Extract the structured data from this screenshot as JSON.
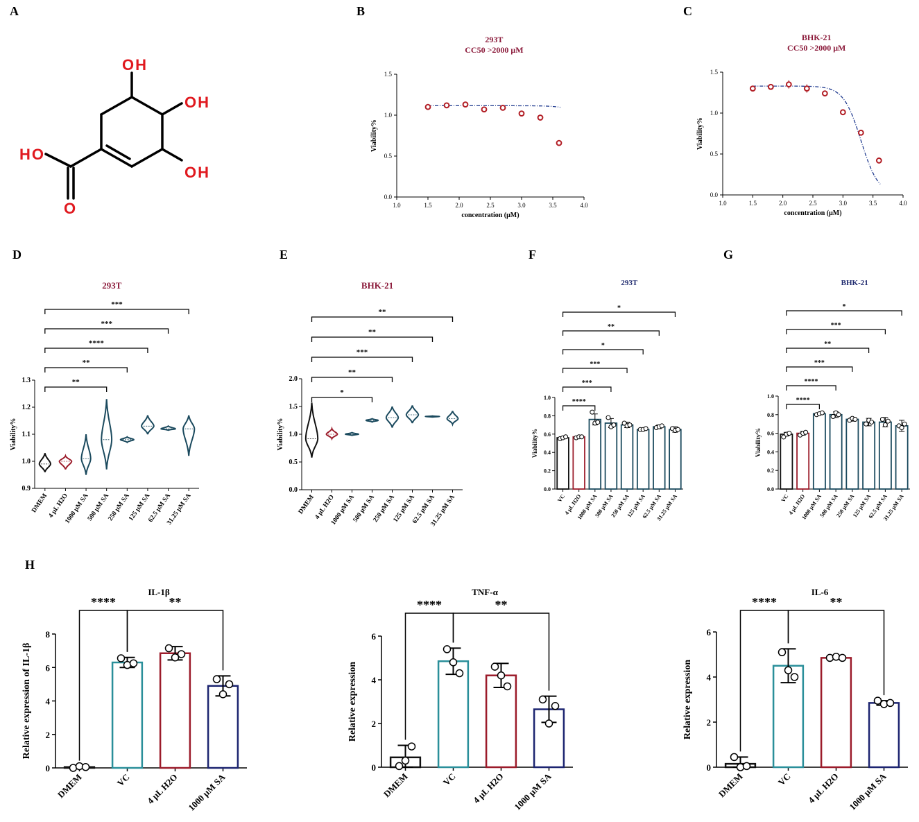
{
  "panels": {
    "A": {
      "letter": "A",
      "molecule": {
        "oh_top": "OH",
        "oh_right": "OH",
        "oh_bottom": "OH",
        "acid_ho": "HO",
        "acid_o": "O"
      }
    },
    "B": {
      "letter": "B",
      "chart_data": {
        "type": "scatter",
        "title": "293T",
        "subtitle": "CC50 >2000 μM",
        "xlabel": "concentration (μM)",
        "ylabel": "Viability%",
        "xlim": [
          1.0,
          4.0
        ],
        "ylim": [
          0.0,
          1.5
        ],
        "xticks": [
          1.0,
          1.5,
          2.0,
          2.5,
          3.0,
          3.5,
          4.0
        ],
        "yticks": [
          0.0,
          0.5,
          1.0,
          1.5
        ],
        "points": [
          {
            "x": 1.5,
            "y": 1.1,
            "err": 0.01
          },
          {
            "x": 1.8,
            "y": 1.12,
            "err": 0.01
          },
          {
            "x": 2.1,
            "y": 1.13,
            "err": 0.01
          },
          {
            "x": 2.4,
            "y": 1.07,
            "err": 0.01
          },
          {
            "x": 2.7,
            "y": 1.09,
            "err": 0.03
          },
          {
            "x": 3.0,
            "y": 1.02,
            "err": 0.02
          },
          {
            "x": 3.3,
            "y": 0.97,
            "err": 0.01
          },
          {
            "x": 3.6,
            "y": 0.66,
            "err": 0.03
          }
        ],
        "fit": {
          "top": 1.115,
          "bottom": 0.0,
          "logec50": 4.25,
          "hill": 2.8
        }
      }
    },
    "C": {
      "letter": "C",
      "chart_data": {
        "type": "scatter",
        "title": "BHK-21",
        "subtitle": "CC50 >2000 μM",
        "xlabel": "concentration (μM)",
        "ylabel": "Viability%",
        "xlim": [
          1.0,
          4.0
        ],
        "ylim": [
          0.0,
          1.5
        ],
        "xticks": [
          1.0,
          1.5,
          2.0,
          2.5,
          3.0,
          3.5,
          4.0
        ],
        "yticks": [
          0.0,
          0.5,
          1.0,
          1.5
        ],
        "points": [
          {
            "x": 1.5,
            "y": 1.3,
            "err": 0.03
          },
          {
            "x": 1.8,
            "y": 1.32,
            "err": 0.01
          },
          {
            "x": 2.1,
            "y": 1.35,
            "err": 0.05
          },
          {
            "x": 2.4,
            "y": 1.3,
            "err": 0.05
          },
          {
            "x": 2.7,
            "y": 1.24,
            "err": 0.01
          },
          {
            "x": 3.0,
            "y": 1.01,
            "err": 0.01
          },
          {
            "x": 3.3,
            "y": 0.76,
            "err": 0.01
          },
          {
            "x": 3.6,
            "y": 0.42,
            "err": 0.01
          }
        ],
        "fit": {
          "top": 1.33,
          "bottom": 0.0,
          "logec50": 3.3,
          "hill": 3.0
        }
      }
    },
    "D": {
      "letter": "D",
      "chart_data": {
        "type": "violin",
        "title": "293T",
        "ylabel": "Viability%",
        "ylim": [
          0.9,
          1.3
        ],
        "yticks": [
          0.9,
          1.0,
          1.1,
          1.2,
          1.3
        ],
        "categories": [
          "DMEM",
          "4 μL H2O",
          "1000 μM SA",
          "500 μM SA",
          "250 μM SA",
          "125 μM SA",
          "62.5 μM SA",
          "31.25 μM SA"
        ],
        "violins": [
          {
            "min": 0.96,
            "max": 1.03,
            "median": 0.99,
            "w": 0.55
          },
          {
            "min": 0.97,
            "max": 1.02,
            "median": 1.0,
            "w": 0.6
          },
          {
            "min": 0.95,
            "max": 1.1,
            "median": 1.01,
            "w": 0.45
          },
          {
            "min": 0.97,
            "max": 1.23,
            "median": 1.08,
            "w": 0.5
          },
          {
            "min": 1.07,
            "max": 1.09,
            "median": 1.08,
            "w": 0.65
          },
          {
            "min": 1.1,
            "max": 1.17,
            "median": 1.13,
            "w": 0.6
          },
          {
            "min": 1.115,
            "max": 1.13,
            "median": 1.12,
            "w": 0.7
          },
          {
            "min": 1.02,
            "max": 1.17,
            "median": 1.12,
            "w": 0.55
          }
        ],
        "colors": [
          "#111111",
          "#9b1b2a",
          "#1b4a5e",
          "#1b4a5e",
          "#1b4a5e",
          "#1b4a5e",
          "#1b4a5e",
          "#1b4a5e"
        ],
        "significance": [
          {
            "to": 3,
            "label": "**"
          },
          {
            "to": 4,
            "label": "**"
          },
          {
            "to": 5,
            "label": "****"
          },
          {
            "to": 6,
            "label": "***"
          },
          {
            "to": 7,
            "label": "***"
          }
        ]
      }
    },
    "E": {
      "letter": "E",
      "chart_data": {
        "type": "violin",
        "title": "BHK-21",
        "ylabel": "Viability%",
        "ylim": [
          0.0,
          2.0
        ],
        "yticks": [
          0.0,
          0.5,
          1.0,
          1.5,
          2.0
        ],
        "categories": [
          "DMEM",
          "4 μL H2O",
          "1000 μM SA",
          "500 μM SA",
          "250 μM SA",
          "125 μM SA",
          "62.5 μM SA",
          "31.25 μM SA"
        ],
        "violins": [
          {
            "min": 0.58,
            "max": 1.57,
            "median": 0.92,
            "w": 0.6
          },
          {
            "min": 0.92,
            "max": 1.1,
            "median": 1.0,
            "w": 0.55
          },
          {
            "min": 0.98,
            "max": 1.03,
            "median": 1.0,
            "w": 0.65
          },
          {
            "min": 1.22,
            "max": 1.28,
            "median": 1.25,
            "w": 0.6
          },
          {
            "min": 1.12,
            "max": 1.5,
            "median": 1.3,
            "w": 0.6
          },
          {
            "min": 1.2,
            "max": 1.52,
            "median": 1.35,
            "w": 0.6
          },
          {
            "min": 1.31,
            "max": 1.33,
            "median": 1.32,
            "w": 0.7
          },
          {
            "min": 1.18,
            "max": 1.42,
            "median": 1.28,
            "w": 0.55
          }
        ],
        "colors": [
          "#111111",
          "#9b1b2a",
          "#1b4a5e",
          "#1b4a5e",
          "#1b4a5e",
          "#1b4a5e",
          "#1b4a5e",
          "#1b4a5e"
        ],
        "significance": [
          {
            "to": 3,
            "label": "*"
          },
          {
            "to": 4,
            "label": "**"
          },
          {
            "to": 5,
            "label": "***"
          },
          {
            "to": 6,
            "label": "**"
          },
          {
            "to": 7,
            "label": "**"
          }
        ]
      }
    },
    "F": {
      "letter": "F",
      "chart_data": {
        "type": "bar",
        "title": "293T",
        "ylabel": "Viability%",
        "ylim": [
          0.0,
          1.0
        ],
        "yticks": [
          0.0,
          0.2,
          0.4,
          0.6,
          0.8,
          1.0
        ],
        "categories": [
          "VC",
          "4 μL H2O",
          "1000 μM SA",
          "500 μM SA",
          "250 μM SA",
          "125 μM SA",
          "62.5 μM SA",
          "31.25 μM SA"
        ],
        "values": [
          0.56,
          0.57,
          0.76,
          0.72,
          0.7,
          0.65,
          0.68,
          0.65
        ],
        "errors": [
          0.01,
          0.01,
          0.06,
          0.05,
          0.03,
          0.01,
          0.02,
          0.03
        ],
        "points": [
          [
            0.55,
            0.56,
            0.57
          ],
          [
            0.56,
            0.57,
            0.57
          ],
          [
            0.84,
            0.72,
            0.73
          ],
          [
            0.78,
            0.68,
            0.7
          ],
          [
            0.72,
            0.69,
            0.7
          ],
          [
            0.65,
            0.65,
            0.66
          ],
          [
            0.67,
            0.68,
            0.69
          ],
          [
            0.66,
            0.64,
            0.65
          ]
        ],
        "colors": [
          "#111111",
          "#9b1b2a",
          "#1b4a5e",
          "#1b4a5e",
          "#1b4a5e",
          "#1b4a5e",
          "#1b4a5e",
          "#1b4a5e"
        ],
        "significance": [
          {
            "to": 2,
            "label": "****"
          },
          {
            "to": 3,
            "label": "***"
          },
          {
            "to": 4,
            "label": "***"
          },
          {
            "to": 5,
            "label": "*"
          },
          {
            "to": 6,
            "label": "**"
          },
          {
            "to": 7,
            "label": "*"
          }
        ]
      }
    },
    "G": {
      "letter": "G",
      "chart_data": {
        "type": "bar",
        "title": "BHK-21",
        "ylabel": "Viability%",
        "ylim": [
          0.0,
          1.0
        ],
        "yticks": [
          0.0,
          0.2,
          0.4,
          0.6,
          0.8,
          1.0
        ],
        "categories": [
          "VC",
          "4 μL H2O",
          "1000 μM SA",
          "500 μM SA",
          "250 μM SA",
          "125 μM SA",
          "62.5 μM SA",
          "31.25 μM SA"
        ],
        "values": [
          0.59,
          0.6,
          0.81,
          0.8,
          0.75,
          0.72,
          0.72,
          0.68
        ],
        "errors": [
          0.02,
          0.02,
          0.01,
          0.03,
          0.02,
          0.04,
          0.05,
          0.06
        ],
        "points": [
          [
            0.56,
            0.59,
            0.6
          ],
          [
            0.58,
            0.6,
            0.61
          ],
          [
            0.8,
            0.81,
            0.82
          ],
          [
            0.78,
            0.82,
            0.8
          ],
          [
            0.74,
            0.76,
            0.75
          ],
          [
            0.7,
            0.74,
            0.72
          ],
          [
            0.75,
            0.69,
            0.73
          ],
          [
            0.68,
            0.66,
            0.7
          ]
        ],
        "colors": [
          "#111111",
          "#9b1b2a",
          "#1b4a5e",
          "#1b4a5e",
          "#1b4a5e",
          "#1b4a5e",
          "#1b4a5e",
          "#1b4a5e"
        ],
        "significance": [
          {
            "to": 2,
            "label": "****"
          },
          {
            "to": 3,
            "label": "****"
          },
          {
            "to": 4,
            "label": "***"
          },
          {
            "to": 5,
            "label": "**"
          },
          {
            "to": 6,
            "label": "***"
          },
          {
            "to": 7,
            "label": "*"
          }
        ]
      }
    },
    "H": {
      "letter": "H",
      "chart_data": [
        {
          "type": "bar",
          "title": "IL-1β",
          "ylabel": "Relative expression of IL-1β",
          "ylim": [
            0,
            8
          ],
          "yticks": [
            0,
            2,
            4,
            6,
            8
          ],
          "categories": [
            "DMEM",
            "VC",
            "4 μL H2O",
            "1000 μM SA"
          ],
          "values": [
            0.05,
            6.3,
            6.85,
            4.9
          ],
          "errors": [
            0.05,
            0.3,
            0.4,
            0.6
          ],
          "points": [
            [
              0.0,
              0.1,
              0.05
            ],
            [
              6.55,
              6.15,
              6.25
            ],
            [
              7.15,
              6.6,
              6.8
            ],
            [
              5.3,
              4.4,
              5.0
            ]
          ],
          "colors": [
            "#111111",
            "#2a8f9a",
            "#9b1b2a",
            "#1c2470"
          ],
          "brackets": [
            {
              "from": 0,
              "to": 1,
              "label": "****"
            },
            {
              "from": 1,
              "to": 3,
              "label": "**"
            }
          ]
        },
        {
          "type": "bar",
          "title": "TNF-α",
          "ylabel": "Relative expression",
          "ylim": [
            0,
            6
          ],
          "yticks": [
            0,
            2,
            4,
            6
          ],
          "categories": [
            "DMEM",
            "VC",
            "4 μL H2O",
            "1000 μM SA"
          ],
          "values": [
            0.45,
            4.85,
            4.2,
            2.65
          ],
          "errors": [
            0.55,
            0.6,
            0.55,
            0.6
          ],
          "points": [
            [
              0.05,
              0.3,
              0.95
            ],
            [
              5.4,
              4.8,
              4.3
            ],
            [
              4.6,
              4.2,
              3.7
            ],
            [
              3.1,
              2.0,
              2.8
            ]
          ],
          "colors": [
            "#111111",
            "#2a8f9a",
            "#9b1b2a",
            "#1c2470"
          ],
          "brackets": [
            {
              "from": 0,
              "to": 1,
              "label": "****"
            },
            {
              "from": 1,
              "to": 3,
              "label": "**"
            }
          ]
        },
        {
          "type": "bar",
          "title": "IL-6",
          "ylabel": "Relative expression",
          "ylim": [
            0,
            6
          ],
          "yticks": [
            0,
            2,
            4,
            6
          ],
          "categories": [
            "DMEM",
            "VC",
            "4 μL H2O",
            "1000 μM SA"
          ],
          "values": [
            0.15,
            4.5,
            4.85,
            2.85
          ],
          "errors": [
            0.3,
            0.75,
            0.05,
            0.1
          ],
          "points": [
            [
              0.45,
              0.0,
              0.05
            ],
            [
              5.1,
              4.3,
              4.0
            ],
            [
              4.85,
              4.9,
              4.85
            ],
            [
              2.95,
              2.8,
              2.85
            ]
          ],
          "colors": [
            "#111111",
            "#2a8f9a",
            "#9b1b2a",
            "#1c2470"
          ],
          "brackets": [
            {
              "from": 0,
              "to": 1,
              "label": "****"
            },
            {
              "from": 1,
              "to": 3,
              "label": "**"
            }
          ]
        }
      ]
    }
  }
}
